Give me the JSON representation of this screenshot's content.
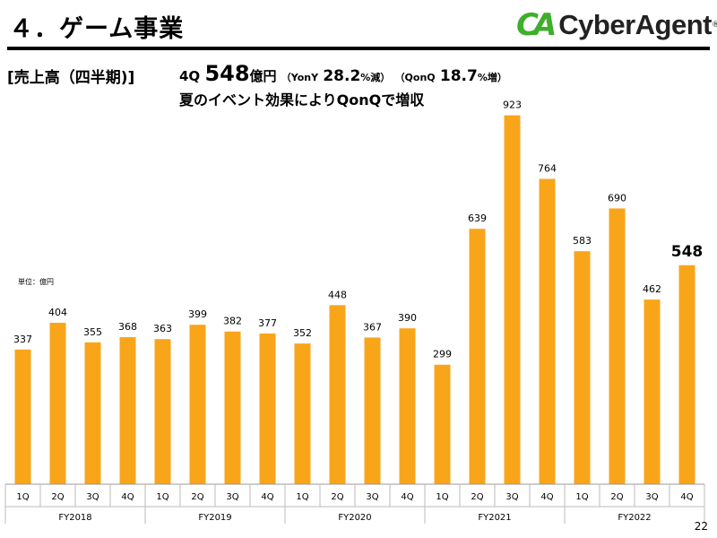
{
  "header": {
    "title": "４．ゲーム事業",
    "logo_mark": "CA",
    "logo_text": "CyberAgent",
    "logo_reg": "®"
  },
  "section_label": "[売上高（四半期)]",
  "headline": {
    "quarter": "4Q",
    "value": "548",
    "unit": "億円",
    "yoy_open": "（YonY",
    "yoy_value": "28.2",
    "yoy_suffix": "%減）",
    "qoq_open": "（QonQ",
    "qoq_value": "18.7",
    "qoq_suffix": "%増）"
  },
  "subheadline": "夏のイベント効果によりQonQで増収",
  "unit_label": "単位：億円",
  "page_number": "22",
  "colors": {
    "bar": "#f9a51a",
    "rule": "#000000",
    "brand_green": "#3fae2a"
  },
  "chart_data": {
    "type": "bar",
    "categories": [
      "1Q",
      "2Q",
      "3Q",
      "4Q",
      "1Q",
      "2Q",
      "3Q",
      "4Q",
      "1Q",
      "2Q",
      "3Q",
      "4Q",
      "1Q",
      "2Q",
      "3Q",
      "4Q",
      "1Q",
      "2Q",
      "3Q",
      "4Q"
    ],
    "groups": [
      {
        "label": "FY2018",
        "count": 4
      },
      {
        "label": "FY2019",
        "count": 4
      },
      {
        "label": "FY2020",
        "count": 4
      },
      {
        "label": "FY2021",
        "count": 4
      },
      {
        "label": "FY2022",
        "count": 4
      }
    ],
    "values": [
      337,
      404,
      355,
      368,
      363,
      399,
      382,
      377,
      352,
      448,
      367,
      390,
      299,
      639,
      923,
      764,
      583,
      690,
      462,
      548
    ],
    "data_labels": [
      "337",
      "404",
      "355",
      "368",
      "363",
      "399",
      "382",
      "377",
      "352",
      "448",
      "367",
      "390",
      "299",
      "639",
      "923",
      "764",
      "583",
      "690",
      "462",
      "548"
    ],
    "highlight_index": 19,
    "ylim": [
      0,
      1000
    ],
    "grid": false,
    "legend": "none"
  }
}
